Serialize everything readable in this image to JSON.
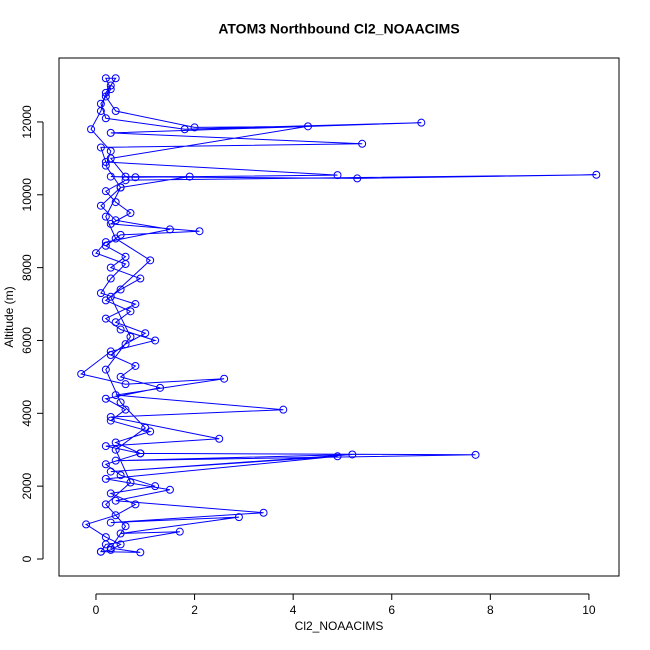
{
  "chart_data": {
    "type": "line",
    "title": "ATOM3 Northbound Cl2_NOAACIMS",
    "x_label": "Cl2_NOAACIMS",
    "y_label": "Altitude (m)",
    "marker": true,
    "x": [
      0.1,
      0.3,
      0.5,
      0.2,
      -0.2,
      0.4,
      0.8,
      0.3,
      1.2,
      0.5,
      0.2,
      0.9,
      0.4,
      1.1,
      0.3,
      0.6,
      0.2,
      1.3,
      0.5,
      0.8,
      0.3,
      0.6,
      1.0,
      0.4,
      0.7,
      0.2,
      0.5,
      0.9,
      0.3,
      0.6,
      0.2,
      0.5,
      2.1,
      0.3,
      0.7,
      0.4,
      0.2,
      0.6,
      10.15,
      5.3,
      0.3,
      0.8,
      4.9,
      0.2,
      0.1,
      5.4,
      0.3,
      6.6,
      1.8,
      0.2,
      0.1,
      0.3,
      0.2,
      0.4,
      0.2,
      0.1,
      -0.1,
      0.3,
      0.2,
      0.5,
      0.1,
      0.4,
      1.5,
      0.2,
      0.0,
      0.6,
      0.3,
      0.1,
      0.8,
      0.2,
      0.5,
      1.2,
      0.3,
      -0.3,
      0.6,
      2.6,
      0.4,
      3.8,
      0.3,
      2.5,
      0.2,
      0.9,
      7.7,
      0.4,
      5.2,
      0.3,
      4.9,
      0.2,
      1.5,
      0.4,
      3.4,
      0.3,
      2.9,
      0.5,
      1.7,
      0.2,
      0.1,
      0.9,
      0.3,
      0.6,
      0.2,
      0.7,
      0.4,
      1.0,
      0.5,
      0.2,
      0.7,
      0.3,
      1.1,
      0.4,
      0.2,
      0.5,
      1.9,
      0.6,
      0.3,
      4.3,
      2.0,
      0.4,
      0.2,
      0.3
    ],
    "series": [
      {
        "color": "#0000ff",
        "values": [
          200,
          250,
          400,
          600,
          950,
          1200,
          1500,
          1800,
          2000,
          2300,
          2600,
          2900,
          3200,
          3500,
          3800,
          4100,
          4400,
          4700,
          5000,
          5300,
          5600,
          5900,
          6200,
          6500,
          6800,
          7100,
          7400,
          7700,
          8000,
          8300,
          8600,
          8900,
          9000,
          9200,
          9500,
          9800,
          10100,
          10400,
          10550,
          10450,
          10500,
          10480,
          10540,
          10900,
          11300,
          11400,
          11700,
          11980,
          11800,
          12100,
          12500,
          12900,
          13200,
          13200,
          12800,
          12300,
          11800,
          11200,
          10800,
          10200,
          9700,
          9300,
          9050,
          8700,
          8400,
          8100,
          7700,
          7300,
          7000,
          6600,
          6300,
          6000,
          5700,
          5080,
          4800,
          4950,
          4500,
          4100,
          3900,
          3300,
          3100,
          2900,
          2860,
          2700,
          2870,
          2400,
          2820,
          2200,
          1900,
          1600,
          1270,
          1000,
          1150,
          700,
          750,
          400,
          200,
          180,
          300,
          900,
          1500,
          2100,
          3000,
          3600,
          4300,
          5200,
          6100,
          7200,
          8200,
          8800,
          9400,
          10200,
          10500,
          10500,
          11000,
          11880,
          11850,
          12300,
          12700,
          13000
        ]
      }
    ],
    "xlim": [
      -0.75,
      10.61
    ],
    "ylim": [
      -467,
      13756
    ],
    "xticks": [
      0,
      2,
      4,
      6,
      8,
      10
    ],
    "yticks": [
      0,
      2000,
      4000,
      6000,
      8000,
      10000,
      12000
    ]
  }
}
